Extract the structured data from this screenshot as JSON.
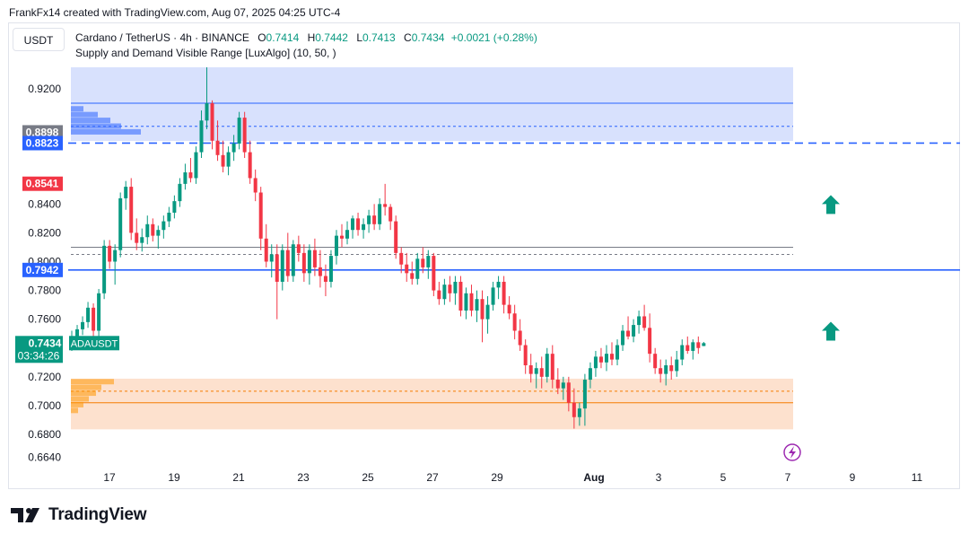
{
  "header": {
    "credit": "FrankFx14 created with TradingView.com, Aug 07, 2025 04:25 UTC-4"
  },
  "toolbar": {
    "currency": "USDT"
  },
  "legend": {
    "symbol": "Cardano / TetherUS · 4h · BINANCE",
    "open_label": "O",
    "open": "0.7414",
    "high_label": "H",
    "high": "0.7442",
    "low_label": "L",
    "low": "0.7413",
    "close_label": "C",
    "close": "0.7434",
    "change": "+0.0021 (+0.28%)",
    "indicator": "Supply and Demand Visible Range [LuxAlgo] (10, 50, )"
  },
  "footer": {
    "brand": "TradingView"
  },
  "colors": {
    "up": "#089981",
    "down": "#f23645",
    "supply_zone": "#d1dcfd",
    "demand_zone": "#fddcc6",
    "blue_line": "#2962ff",
    "price_tag": "#089981"
  },
  "chart_data": {
    "type": "candlestick",
    "y_ticks": [
      "0.9200",
      "0.8400",
      "0.8200",
      "0.8000",
      "0.7800",
      "0.7600",
      "0.7200",
      "0.7000",
      "0.6800",
      "0.6640"
    ],
    "x_ticks": [
      "17",
      "19",
      "21",
      "23",
      "25",
      "27",
      "29",
      "Aug",
      "3",
      "5",
      "7",
      "9",
      "11"
    ],
    "ylim": [
      0.664,
      0.935
    ],
    "price_labels": [
      {
        "value": "0.8898",
        "style": "gray"
      },
      {
        "value": "0.8823",
        "style": "blue"
      },
      {
        "value": "0.8541",
        "style": "red"
      },
      {
        "value": "0.7942",
        "style": "blue"
      },
      {
        "value": "0.7434",
        "style": "green"
      }
    ],
    "current": {
      "symbol": "ADAUSDT",
      "price": "0.7434",
      "countdown": "03:34:26"
    },
    "zones": {
      "supply": {
        "top": 0.935,
        "bottom": 0.8838,
        "avg": 0.894,
        "level": 0.91
      },
      "equilibrium": {
        "top": 0.81,
        "avg": 0.805
      },
      "demand": {
        "top": 0.7187,
        "bottom": 0.6835,
        "avg": 0.71,
        "level": 0.702
      }
    },
    "levels": {
      "dashed_blue": 0.8823,
      "solid_blue": 0.7942
    },
    "arrows": [
      {
        "date": "Aug 8.3",
        "price": 0.84
      },
      {
        "date": "Aug 8.3",
        "price": 0.752
      }
    ],
    "candles": [
      [
        0.744,
        0.752,
        0.738,
        0.748
      ],
      [
        0.748,
        0.756,
        0.743,
        0.753
      ],
      [
        0.753,
        0.762,
        0.749,
        0.758
      ],
      [
        0.758,
        0.772,
        0.754,
        0.768
      ],
      [
        0.768,
        0.771,
        0.748,
        0.752
      ],
      [
        0.752,
        0.781,
        0.748,
        0.778
      ],
      [
        0.778,
        0.815,
        0.774,
        0.811
      ],
      [
        0.811,
        0.815,
        0.795,
        0.8
      ],
      [
        0.8,
        0.812,
        0.784,
        0.808
      ],
      [
        0.808,
        0.848,
        0.803,
        0.844
      ],
      [
        0.844,
        0.856,
        0.836,
        0.852
      ],
      [
        0.852,
        0.858,
        0.815,
        0.82
      ],
      [
        0.82,
        0.83,
        0.808,
        0.813
      ],
      [
        0.813,
        0.823,
        0.807,
        0.817
      ],
      [
        0.817,
        0.832,
        0.812,
        0.826
      ],
      [
        0.826,
        0.83,
        0.814,
        0.818
      ],
      [
        0.818,
        0.825,
        0.809,
        0.822
      ],
      [
        0.822,
        0.832,
        0.816,
        0.828
      ],
      [
        0.828,
        0.838,
        0.824,
        0.834
      ],
      [
        0.834,
        0.846,
        0.83,
        0.842
      ],
      [
        0.842,
        0.858,
        0.838,
        0.854
      ],
      [
        0.854,
        0.868,
        0.85,
        0.862
      ],
      [
        0.862,
        0.872,
        0.855,
        0.858
      ],
      [
        0.858,
        0.88,
        0.854,
        0.876
      ],
      [
        0.876,
        0.905,
        0.872,
        0.898
      ],
      [
        0.898,
        0.935,
        0.892,
        0.91
      ],
      [
        0.91,
        0.912,
        0.878,
        0.884
      ],
      [
        0.884,
        0.898,
        0.87,
        0.874
      ],
      [
        0.874,
        0.884,
        0.862,
        0.866
      ],
      [
        0.866,
        0.88,
        0.86,
        0.876
      ],
      [
        0.876,
        0.888,
        0.87,
        0.882
      ],
      [
        0.882,
        0.904,
        0.878,
        0.9
      ],
      [
        0.9,
        0.904,
        0.872,
        0.876
      ],
      [
        0.876,
        0.884,
        0.854,
        0.858
      ],
      [
        0.858,
        0.864,
        0.842,
        0.848
      ],
      [
        0.848,
        0.852,
        0.808,
        0.816
      ],
      [
        0.816,
        0.826,
        0.796,
        0.8
      ],
      [
        0.8,
        0.812,
        0.789,
        0.805
      ],
      [
        0.805,
        0.812,
        0.76,
        0.786
      ],
      [
        0.786,
        0.812,
        0.78,
        0.808
      ],
      [
        0.808,
        0.82,
        0.786,
        0.79
      ],
      [
        0.79,
        0.815,
        0.786,
        0.812
      ],
      [
        0.812,
        0.818,
        0.8,
        0.806
      ],
      [
        0.806,
        0.812,
        0.786,
        0.792
      ],
      [
        0.792,
        0.812,
        0.784,
        0.808
      ],
      [
        0.808,
        0.816,
        0.79,
        0.796
      ],
      [
        0.796,
        0.808,
        0.782,
        0.79
      ],
      [
        0.79,
        0.798,
        0.776,
        0.786
      ],
      [
        0.786,
        0.808,
        0.782,
        0.804
      ],
      [
        0.804,
        0.822,
        0.798,
        0.818
      ],
      [
        0.818,
        0.826,
        0.81,
        0.816
      ],
      [
        0.816,
        0.828,
        0.812,
        0.822
      ],
      [
        0.822,
        0.832,
        0.816,
        0.83
      ],
      [
        0.83,
        0.834,
        0.818,
        0.822
      ],
      [
        0.822,
        0.83,
        0.816,
        0.826
      ],
      [
        0.826,
        0.836,
        0.82,
        0.832
      ],
      [
        0.832,
        0.84,
        0.822,
        0.826
      ],
      [
        0.826,
        0.844,
        0.822,
        0.84
      ],
      [
        0.84,
        0.854,
        0.832,
        0.838
      ],
      [
        0.838,
        0.84,
        0.822,
        0.828
      ],
      [
        0.828,
        0.832,
        0.802,
        0.806
      ],
      [
        0.806,
        0.81,
        0.792,
        0.798
      ],
      [
        0.798,
        0.806,
        0.786,
        0.792
      ],
      [
        0.792,
        0.8,
        0.784,
        0.788
      ],
      [
        0.788,
        0.806,
        0.784,
        0.802
      ],
      [
        0.802,
        0.81,
        0.792,
        0.796
      ],
      [
        0.796,
        0.808,
        0.788,
        0.804
      ],
      [
        0.804,
        0.806,
        0.776,
        0.78
      ],
      [
        0.78,
        0.786,
        0.77,
        0.774
      ],
      [
        0.774,
        0.788,
        0.77,
        0.784
      ],
      [
        0.784,
        0.79,
        0.772,
        0.778
      ],
      [
        0.778,
        0.79,
        0.77,
        0.786
      ],
      [
        0.786,
        0.79,
        0.762,
        0.766
      ],
      [
        0.766,
        0.782,
        0.76,
        0.778
      ],
      [
        0.778,
        0.784,
        0.762,
        0.766
      ],
      [
        0.766,
        0.78,
        0.758,
        0.774
      ],
      [
        0.774,
        0.78,
        0.744,
        0.76
      ],
      [
        0.76,
        0.776,
        0.75,
        0.77
      ],
      [
        0.77,
        0.786,
        0.766,
        0.782
      ],
      [
        0.782,
        0.79,
        0.774,
        0.786
      ],
      [
        0.786,
        0.79,
        0.764,
        0.77
      ],
      [
        0.77,
        0.776,
        0.76,
        0.764
      ],
      [
        0.764,
        0.77,
        0.746,
        0.752
      ],
      [
        0.752,
        0.76,
        0.738,
        0.742
      ],
      [
        0.742,
        0.746,
        0.722,
        0.728
      ],
      [
        0.728,
        0.736,
        0.716,
        0.722
      ],
      [
        0.722,
        0.73,
        0.712,
        0.726
      ],
      [
        0.726,
        0.734,
        0.712,
        0.72
      ],
      [
        0.72,
        0.74,
        0.716,
        0.736
      ],
      [
        0.736,
        0.742,
        0.712,
        0.718
      ],
      [
        0.718,
        0.726,
        0.708,
        0.712
      ],
      [
        0.712,
        0.72,
        0.704,
        0.716
      ],
      [
        0.716,
        0.72,
        0.696,
        0.702
      ],
      [
        0.702,
        0.712,
        0.684,
        0.692
      ],
      [
        0.692,
        0.702,
        0.686,
        0.698
      ],
      [
        0.698,
        0.722,
        0.686,
        0.718
      ],
      [
        0.718,
        0.73,
        0.712,
        0.726
      ],
      [
        0.726,
        0.738,
        0.72,
        0.734
      ],
      [
        0.734,
        0.74,
        0.726,
        0.73
      ],
      [
        0.73,
        0.742,
        0.724,
        0.736
      ],
      [
        0.736,
        0.744,
        0.728,
        0.732
      ],
      [
        0.732,
        0.746,
        0.728,
        0.742
      ],
      [
        0.742,
        0.756,
        0.738,
        0.752
      ],
      [
        0.752,
        0.762,
        0.746,
        0.748
      ],
      [
        0.748,
        0.76,
        0.744,
        0.756
      ],
      [
        0.756,
        0.766,
        0.75,
        0.762
      ],
      [
        0.762,
        0.77,
        0.752,
        0.754
      ],
      [
        0.754,
        0.764,
        0.73,
        0.736
      ],
      [
        0.736,
        0.74,
        0.722,
        0.726
      ],
      [
        0.726,
        0.732,
        0.716,
        0.722
      ],
      [
        0.722,
        0.732,
        0.714,
        0.728
      ],
      [
        0.728,
        0.734,
        0.718,
        0.724
      ],
      [
        0.724,
        0.738,
        0.72,
        0.732
      ],
      [
        0.732,
        0.746,
        0.728,
        0.742
      ],
      [
        0.742,
        0.748,
        0.736,
        0.738
      ],
      [
        0.738,
        0.746,
        0.732,
        0.744
      ],
      [
        0.744,
        0.748,
        0.736,
        0.74
      ],
      [
        0.7414,
        0.7442,
        0.7413,
        0.7434
      ]
    ]
  }
}
